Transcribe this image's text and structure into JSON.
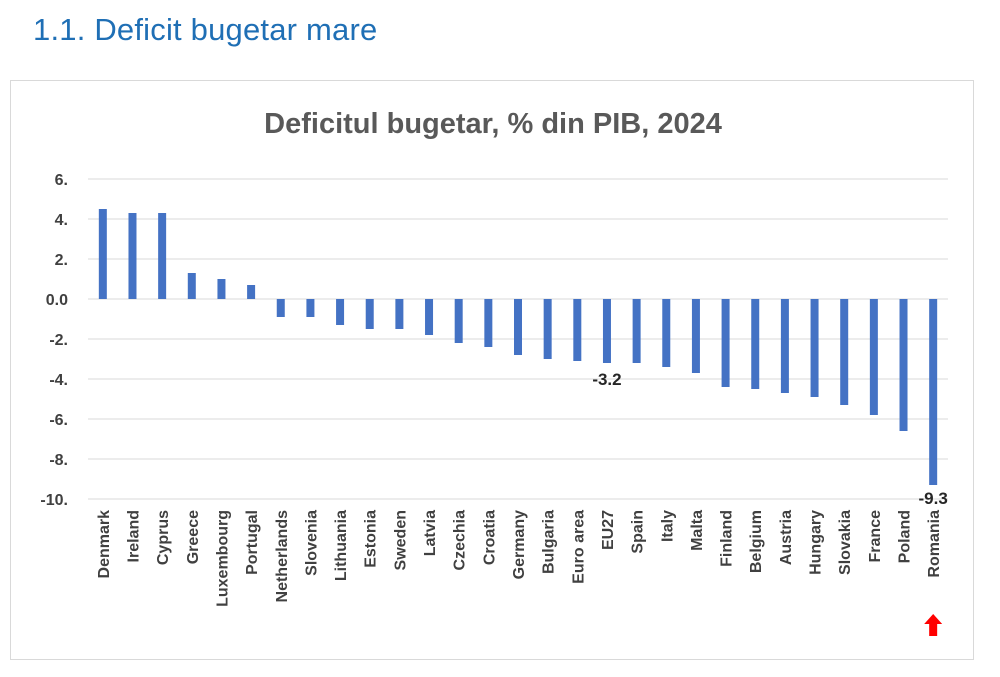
{
  "page": {
    "title": "1.1. Deficit bugetar mare"
  },
  "chart_data": {
    "type": "bar",
    "title": "Deficitul bugetar, % din PIB, 2024",
    "xlabel": "",
    "ylabel": "",
    "ylim": [
      -10,
      6
    ],
    "y_ticks": [
      6,
      4,
      2,
      0,
      -2,
      -4,
      -6,
      -8,
      -10
    ],
    "y_tick_labels": [
      "6.",
      "4.",
      "2.",
      "0.0",
      "-2.",
      "-4.",
      "-6.",
      "-8.",
      "-10."
    ],
    "grid": true,
    "legend": "none",
    "bar_color": "#4472c4",
    "arrow_color": "#ff0000",
    "categories": [
      "Denmark",
      "Ireland",
      "Cyprus",
      "Greece",
      "Luxembourg",
      "Portugal",
      "Netherlands",
      "Slovenia",
      "Lithuania",
      "Estonia",
      "Sweden",
      "Latvia",
      "Czechia",
      "Croatia",
      "Germany",
      "Bulgaria",
      "Euro area",
      "EU27",
      "Spain",
      "Italy",
      "Malta",
      "Finland",
      "Belgium",
      "Austria",
      "Hungary",
      "Slovakia",
      "France",
      "Poland",
      "Romania"
    ],
    "values": [
      4.5,
      4.3,
      4.3,
      1.3,
      1.0,
      0.7,
      -0.9,
      -0.9,
      -1.3,
      -1.5,
      -1.5,
      -1.8,
      -2.2,
      -2.4,
      -2.8,
      -3.0,
      -3.1,
      -3.2,
      -3.2,
      -3.4,
      -3.7,
      -4.4,
      -4.5,
      -4.7,
      -4.9,
      -5.3,
      -5.8,
      -6.6,
      -9.3
    ],
    "data_labels": [
      {
        "category": "EU27",
        "text": "-3.2"
      },
      {
        "category": "Romania",
        "text": "-9.3"
      }
    ],
    "highlight": {
      "category": "Romania",
      "marker": "up-arrow"
    }
  }
}
